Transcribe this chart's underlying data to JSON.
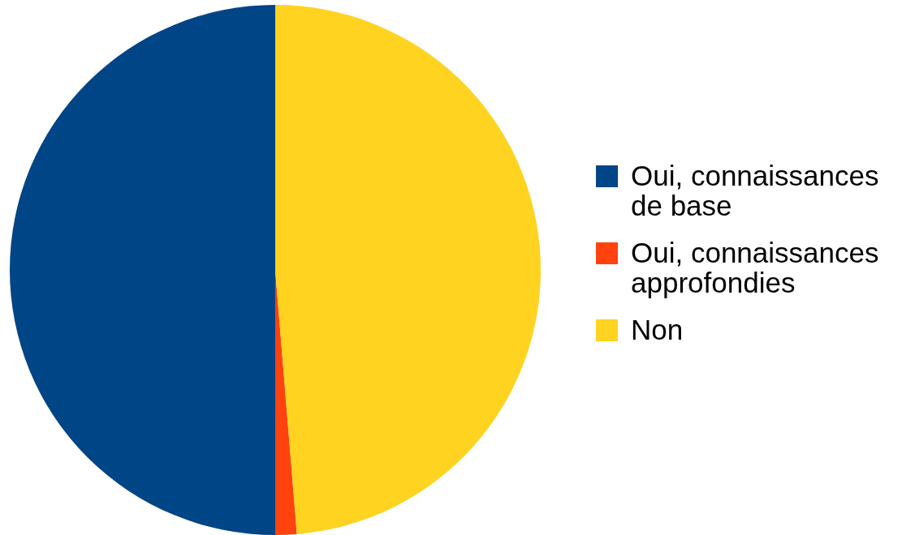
{
  "chart_data": {
    "type": "pie",
    "categories": [
      "Oui, connaissances de base",
      "Oui, connaissances approfondies",
      "Non"
    ],
    "values": [
      50,
      1.3,
      48.7
    ],
    "colors": [
      "#004586",
      "#ff420e",
      "#ffd320"
    ],
    "legend": "right"
  }
}
